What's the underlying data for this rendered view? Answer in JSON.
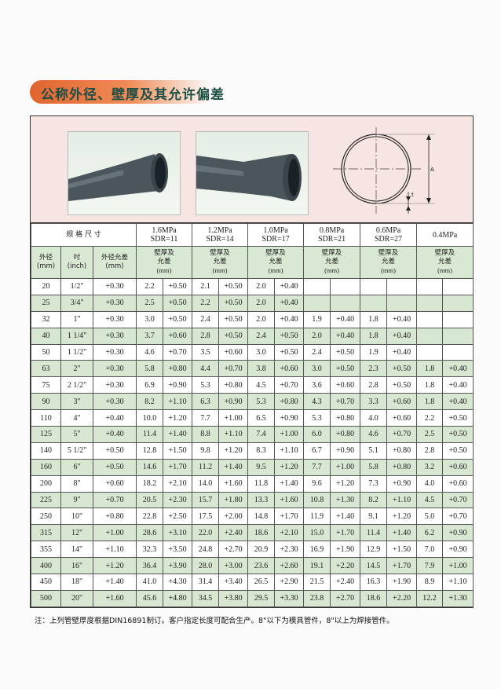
{
  "title": "公称外径、壁厚及其允许偏差",
  "diagram_labels": {
    "a": "A",
    "t": "t"
  },
  "header": {
    "spec": "规 格 尺 寸",
    "pressures": [
      {
        "mpa": "1.6MPa",
        "sdr": "SDR=11"
      },
      {
        "mpa": "1.2MPa",
        "sdr": "SDR=14"
      },
      {
        "mpa": "1.0MPa",
        "sdr": "SDR=17"
      },
      {
        "mpa": "0.8MPa",
        "sdr": "SDR=21"
      },
      {
        "mpa": "0.6MPa",
        "sdr": "SDR=27"
      },
      {
        "mpa": "0.4MPa",
        "sdr": ""
      }
    ],
    "od": "外径",
    "od_unit": "(mm)",
    "inch": "吋",
    "inch_unit": "(inch)",
    "od_tol": "外径允差",
    "od_tol_unit": "(mm)",
    "wall1": "壁厚及",
    "wall2": "允差",
    "wall_unit": "(mm)"
  },
  "rows": [
    [
      "20",
      "1/2\"",
      "+0.30",
      "2.2",
      "+0.50",
      "2.1",
      "+0.50",
      "2.0",
      "+0.40",
      "",
      "",
      "",
      "",
      "",
      ""
    ],
    [
      "25",
      "3/4\"",
      "+0.30",
      "2.5",
      "+0.50",
      "2.2",
      "+0.50",
      "2.0",
      "+0.40",
      "",
      "",
      "",
      "",
      "",
      ""
    ],
    [
      "32",
      "1\"",
      "+0.30",
      "3.0",
      "+0.50",
      "2.4",
      "+0.50",
      "2.0",
      "+0.40",
      "1.9",
      "+0.40",
      "1.8",
      "+0.40",
      "",
      ""
    ],
    [
      "40",
      "1 1/4\"",
      "+0.30",
      "3.7",
      "+0.60",
      "2.8",
      "+0.50",
      "2.4",
      "+0.50",
      "2.0",
      "+0.40",
      "1.8",
      "+0.40",
      "",
      ""
    ],
    [
      "50",
      "1 1/2\"",
      "+0.30",
      "4.6",
      "+0.70",
      "3.5",
      "+0.60",
      "3.0",
      "+0.50",
      "2.4",
      "+0.50",
      "1.9",
      "+0.40",
      "",
      ""
    ],
    [
      "63",
      "2\"",
      "+0.30",
      "5.8",
      "+0.80",
      "4.4",
      "+0.70",
      "3.8",
      "+0.60",
      "3.0",
      "+0.50",
      "2.3",
      "+0.50",
      "1.8",
      "+0.40"
    ],
    [
      "75",
      "2 1/2\"",
      "+0.30",
      "6.9",
      "+0.90",
      "5.3",
      "+0.80",
      "4.5",
      "+0.70",
      "3.6",
      "+0.60",
      "2.8",
      "+0.50",
      "1.8",
      "+0.40"
    ],
    [
      "90",
      "3\"",
      "+0.30",
      "8.2",
      "+1.10",
      "6.3",
      "+0.90",
      "5.3",
      "+0.80",
      "4.3",
      "+0.70",
      "3.3",
      "+0.60",
      "1.8",
      "+0.40"
    ],
    [
      "110",
      "4\"",
      "+0.40",
      "10.0",
      "+1.20",
      "7.7",
      "+1.00",
      "6.5",
      "+0.90",
      "5.3",
      "+0.80",
      "4.0",
      "+0.60",
      "2.2",
      "+0.50"
    ],
    [
      "125",
      "5\"",
      "+0.40",
      "11.4",
      "+1.40",
      "8.8",
      "+1.10",
      "7.4",
      "+1.00",
      "6.0",
      "+0.80",
      "4.6",
      "+0.70",
      "2.5",
      "+0.50"
    ],
    [
      "140",
      "5 1/2\"",
      "+0.50",
      "12.8",
      "+1.50",
      "9.8",
      "+1.20",
      "8.3",
      "+1.10",
      "6.7",
      "+0.90",
      "5.1",
      "+0.80",
      "2.8",
      "+0.50"
    ],
    [
      "160",
      "6\"",
      "+0.50",
      "14.6",
      "+1.70",
      "11.2",
      "+1.40",
      "9.5",
      "+1.20",
      "7.7",
      "+1.00",
      "5.8",
      "+0.80",
      "3.2",
      "+0.60"
    ],
    [
      "200",
      "8\"",
      "+0.60",
      "18.2",
      "+2.10",
      "14.0",
      "+1.60",
      "11.8",
      "+1.40",
      "9.6",
      "+1.20",
      "7.3",
      "+0.90",
      "4.0",
      "+0.60"
    ],
    [
      "225",
      "9\"",
      "+0.70",
      "20.5",
      "+2.30",
      "15.7",
      "+1.80",
      "13.3",
      "+1.60",
      "10.8",
      "+1.30",
      "8.2",
      "+1.10",
      "4.5",
      "+0.70"
    ],
    [
      "250",
      "10\"",
      "+0.80",
      "22.8",
      "+2.50",
      "17.5",
      "+2.00",
      "14.8",
      "+1.70",
      "11.9",
      "+1.40",
      "9.1",
      "+1.20",
      "5.0",
      "+0.70"
    ],
    [
      "315",
      "12\"",
      "+1.00",
      "28.6",
      "+3.10",
      "22.0",
      "+2.40",
      "18.6",
      "+2.10",
      "15.0",
      "+1.70",
      "11.4",
      "+1.40",
      "6.2",
      "+0.90"
    ],
    [
      "355",
      "14\"",
      "+1.10",
      "32.3",
      "+3.50",
      "24.8",
      "+2.70",
      "20.9",
      "+2.30",
      "16.9",
      "+1.90",
      "12.9",
      "+1.50",
      "7.0",
      "+0.90"
    ],
    [
      "400",
      "16\"",
      "+1.20",
      "36.4",
      "+3.90",
      "28.0",
      "+3.00",
      "23.6",
      "+2.60",
      "19.1",
      "+2.20",
      "14.5",
      "+1.70",
      "7.9",
      "+1.00"
    ],
    [
      "450",
      "18\"",
      "+1.40",
      "41.0",
      "+4.30",
      "31.4",
      "+3.40",
      "26.5",
      "+2.90",
      "21.5",
      "+2.40",
      "16.3",
      "+1.90",
      "8.9",
      "+1.10"
    ],
    [
      "500",
      "20\"",
      "+1.60",
      "45.6",
      "+4.80",
      "34.5",
      "+3.80",
      "29.5",
      "+3.30",
      "23.8",
      "+2.70",
      "18.6",
      "+2.20",
      "12.2",
      "+1.30"
    ]
  ],
  "note": "注：上列管壁厚度根据DIN16891制订。客户指定长度可配合生产。8\"以下为模具管件，8\"以上为焊接管件。",
  "colors": {
    "title": "#1e4e43",
    "title_band": "#e0652f",
    "row_alt": "#d7e7d1",
    "image_band": "#f7e5e3"
  }
}
